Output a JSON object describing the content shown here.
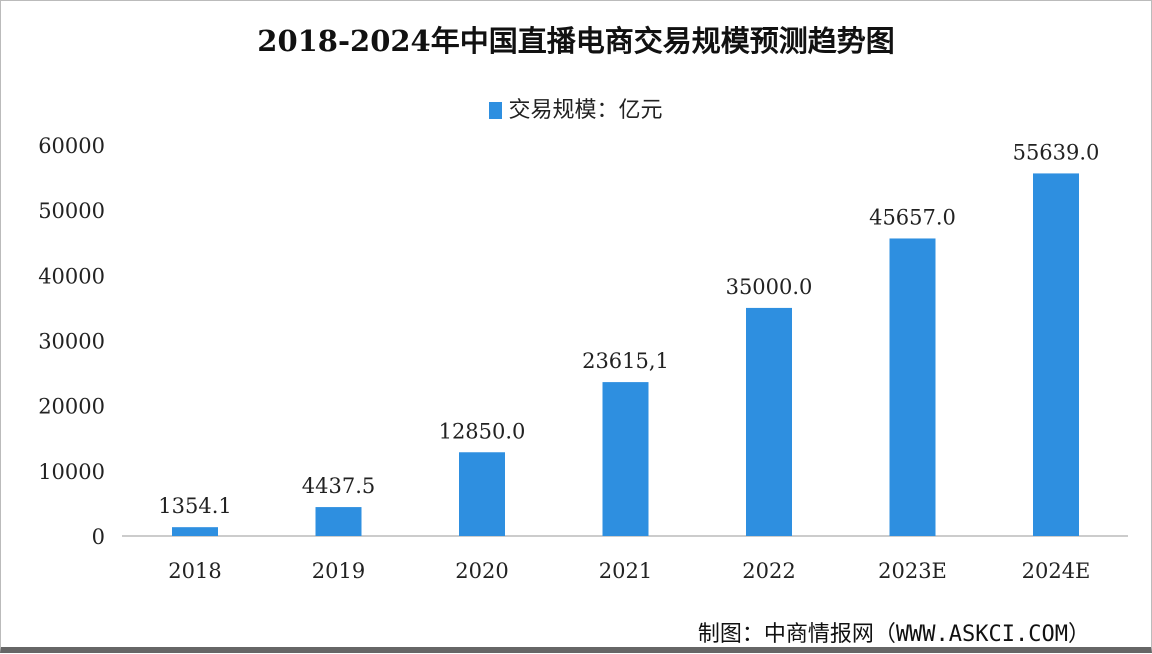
{
  "chart_data": {
    "type": "bar",
    "title": "2018-2024年中国直播电商交易规模预测趋势图",
    "legend": [
      "交易规模：亿元"
    ],
    "legend_position": "top",
    "categories": [
      "2018",
      "2019",
      "2020",
      "2021",
      "2022",
      "2023E",
      "2024E"
    ],
    "values": [
      1354.1,
      4437.5,
      12850.0,
      23615.1,
      35000.0,
      45657.0,
      55639.0
    ],
    "data_labels": [
      "1354.1",
      "4437.5",
      "12850.0",
      "23615,1",
      "35000.0",
      "45657.0",
      "55639.0"
    ],
    "yticks": [
      0,
      10000,
      20000,
      30000,
      40000,
      50000,
      60000
    ],
    "ylim": [
      0,
      60000
    ],
    "grid": false,
    "bar_color": "#2e8fe0",
    "source": "制图：中商情报网（WWW.ASKCI.COM）"
  }
}
